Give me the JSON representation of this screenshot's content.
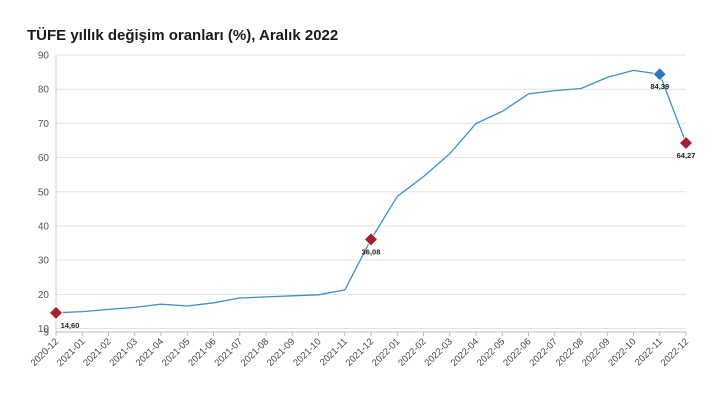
{
  "chart_data": {
    "type": "line",
    "title": "TÜFE yıllık değişim oranları (%), Aralık 2022",
    "xlabel": "",
    "ylabel": "",
    "ylim": [
      9,
      90
    ],
    "yticks": [
      9,
      10,
      20,
      30,
      40,
      50,
      60,
      70,
      80,
      90
    ],
    "grid": "horizontal",
    "legend": "none",
    "categories": [
      "2020-12",
      "2021-01",
      "2021-02",
      "2021-03",
      "2021-04",
      "2021-05",
      "2021-06",
      "2021-07",
      "2021-08",
      "2021-09",
      "2021-10",
      "2021-11",
      "2021-12",
      "2022-01",
      "2022-02",
      "2022-03",
      "2022-04",
      "2022-05",
      "2022-06",
      "2022-07",
      "2022-08",
      "2022-09",
      "2022-10",
      "2022-11",
      "2022-12"
    ],
    "series": [
      {
        "values": [
          14.6,
          14.97,
          15.61,
          16.19,
          17.14,
          16.59,
          17.53,
          18.95,
          19.25,
          19.58,
          19.89,
          21.31,
          36.08,
          48.69,
          54.44,
          61.14,
          69.97,
          73.5,
          78.62,
          79.6,
          80.21,
          83.45,
          85.51,
          84.39,
          64.27
        ],
        "color": "#3f8fc9"
      }
    ],
    "highlights": [
      {
        "index": 0,
        "label": "14,60",
        "color": "#a3212c"
      },
      {
        "index": 12,
        "label": "36,08",
        "color": "#a3212c"
      },
      {
        "index": 23,
        "label": "84,39",
        "color": "#2e78b7"
      },
      {
        "index": 24,
        "label": "64,27",
        "color": "#a3212c"
      }
    ]
  }
}
